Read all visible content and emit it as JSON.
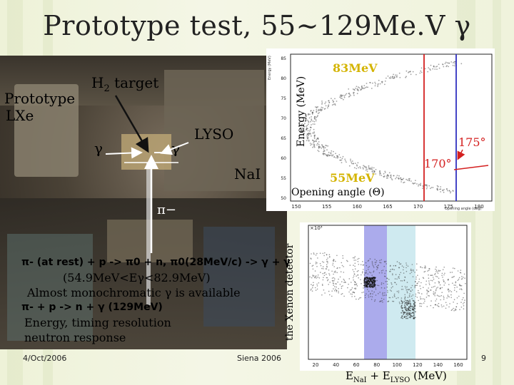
{
  "slide": {
    "title": "Prototype test, 55~129Me.V γ",
    "footer_date": "4/Oct/2006",
    "footer_venue": "Siena 2006",
    "page_number": "9"
  },
  "photo_labels": {
    "prototype": "Prototype",
    "lxe": "LXe",
    "h2_target_main": "H",
    "h2_target_sub": "2",
    "h2_target_rest": " target",
    "gamma_left": "γ",
    "gamma_right": "γ",
    "lyso": "LYSO",
    "nai": "NaI",
    "pion": "π−"
  },
  "scatter_labels": {
    "energy_axis": "Energy (MeV)",
    "energy_small": "Energy (MeV)",
    "label_83": "83MeV",
    "label_55": "55MeV",
    "label_175": "175°",
    "label_170": "170°",
    "opening_angle": "Opening angle (Θ)",
    "x_axis_small": "Opening angle (deg)",
    "y_ticks": [
      "85",
      "80",
      "75",
      "70",
      "65",
      "60",
      "55",
      "50"
    ],
    "x_ticks": [
      "150",
      "155",
      "160",
      "165",
      "170",
      "175",
      "180"
    ]
  },
  "spectrum_labels": {
    "y_axis": "the Xenon detector",
    "scale": "×10³",
    "x_axis": "ENaI + ELYSO (MeV)",
    "x_axis_e1": "E",
    "x_axis_sub1": "NaI",
    "x_axis_plus": " + E",
    "x_axis_sub2": "LYSO",
    "x_axis_unit": " (MeV)",
    "x_ticks": [
      "20",
      "40",
      "60",
      "80",
      "100",
      "120",
      "140",
      "160"
    ]
  },
  "notes": {
    "line1": "π- (at rest) + p -> π0 + n, π0(28MeV/c) -> γ + γ",
    "line2": "(54.9MeV<Eγ<82.9MeV)",
    "line3": "Almost monochromatic γ is available",
    "line4": "π- + p -> n + γ (129MeV)",
    "line5": "Energy, timing resolution",
    "line6": "neutron response"
  },
  "colors": {
    "line_red": "#d42020",
    "band_blue": "#6666dd",
    "band_cyan": "#a8d8e4",
    "label_yellow": "#d4b400"
  }
}
